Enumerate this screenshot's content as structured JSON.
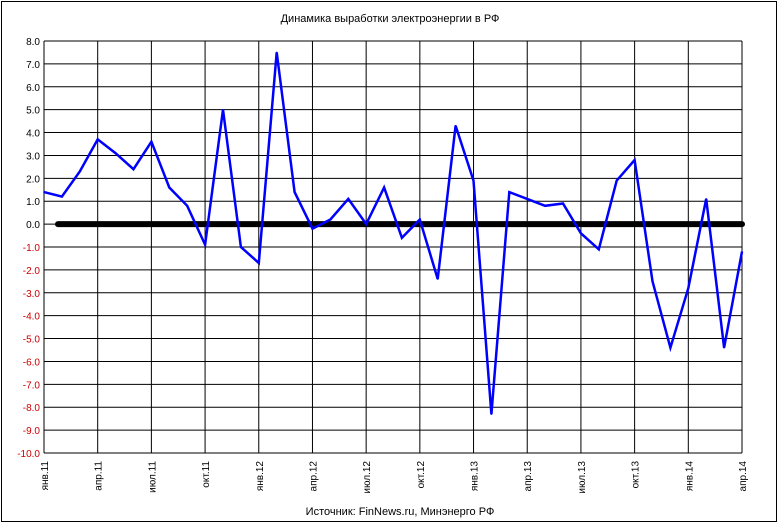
{
  "chart_data": {
    "type": "line",
    "title": "Динамика выработки электроэнергии в РФ",
    "source": "Источник: FinNews.ru, Минэнерго РФ",
    "ylim": [
      -10,
      8
    ],
    "y_ticks": [
      "8.0",
      "7.0",
      "6.0",
      "5.0",
      "4.0",
      "3.0",
      "2.0",
      "1.0",
      "0.0",
      "-1.0",
      "-2.0",
      "-3.0",
      "-4.0",
      "-5.0",
      "-6.0",
      "-7.0",
      "-8.0",
      "-9.0",
      "-10.0"
    ],
    "tick_colors": {
      "positive": "#000000",
      "negative": "#cc0000"
    },
    "x_labels": [
      "янв.11",
      "апр.11",
      "июл.11",
      "окт.11",
      "янв.12",
      "апр.12",
      "июл.12",
      "окт.12",
      "янв.13",
      "апр.13",
      "июл.13",
      "окт.13",
      "янв.14",
      "апр.14"
    ],
    "grid": true,
    "series": [
      {
        "color": "#0000ff",
        "values": [
          1.4,
          1.2,
          2.3,
          3.7,
          3.1,
          2.4,
          3.6,
          1.6,
          0.8,
          -0.9,
          5.0,
          -1.0,
          -1.7,
          7.5,
          1.4,
          -0.2,
          0.2,
          1.1,
          0.0,
          1.6,
          -0.6,
          0.2,
          -2.4,
          4.3,
          1.9,
          -8.3,
          1.4,
          1.1,
          0.8,
          0.9,
          -0.4,
          -1.1,
          1.9,
          2.8,
          -2.5,
          -5.4,
          -2.8,
          1.1,
          -5.4,
          -1.2
        ]
      }
    ],
    "zero_line": {
      "value": 0,
      "color": "#000000"
    }
  }
}
